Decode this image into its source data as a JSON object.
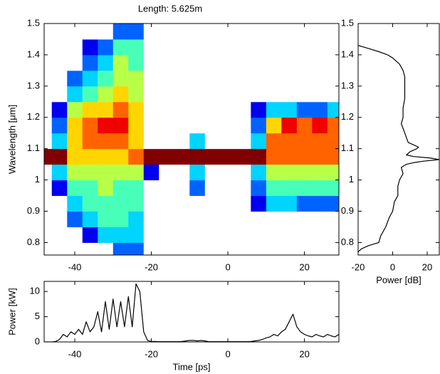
{
  "chart_data": [
    {
      "type": "heatmap",
      "title": "Length: 5.625m",
      "ylabel": "Wavelength [μm]",
      "xlim": [
        -48,
        29
      ],
      "xticks": [
        -40,
        -20,
        0,
        20
      ],
      "ylim": [
        0.76,
        1.5
      ],
      "yticks": [
        0.8,
        0.9,
        1,
        1.1,
        1.2,
        1.3,
        1.4,
        1.5
      ],
      "colormap": "jet",
      "x": [
        -48,
        -44,
        -40,
        -36,
        -32,
        -28,
        -24,
        -20,
        -16,
        -12,
        -8,
        -4,
        0,
        4,
        8,
        12,
        16,
        20,
        24,
        28
      ],
      "y": [
        0.775,
        0.825,
        0.875,
        0.925,
        0.975,
        1.025,
        1.075,
        1.125,
        1.175,
        1.225,
        1.275,
        1.325,
        1.375,
        1.425,
        1.475
      ],
      "z": [
        [
          0,
          0,
          0,
          0,
          0,
          2,
          2,
          0,
          0,
          0,
          0,
          0,
          0,
          0,
          0,
          0,
          0,
          0,
          0,
          0
        ],
        [
          0,
          0,
          0,
          1,
          3,
          3,
          3,
          0,
          0,
          0,
          0,
          0,
          0,
          0,
          0,
          0,
          0,
          0,
          0,
          0
        ],
        [
          0,
          0,
          2,
          3,
          4,
          4,
          3,
          0,
          0,
          0,
          0,
          0,
          0,
          0,
          0,
          0,
          0,
          0,
          0,
          0
        ],
        [
          0,
          0,
          3,
          4,
          4,
          4,
          4,
          0,
          0,
          0,
          0,
          0,
          0,
          0,
          1,
          3,
          3,
          2,
          2,
          2
        ],
        [
          0,
          1,
          4,
          4,
          5,
          4,
          4,
          0,
          0,
          0,
          2,
          0,
          0,
          0,
          2,
          4,
          4,
          4,
          4,
          4
        ],
        [
          0,
          3,
          5,
          5,
          5,
          5,
          5,
          1,
          0,
          0,
          3,
          0,
          0,
          0,
          3,
          5,
          5,
          5,
          5,
          5
        ],
        [
          9,
          9,
          6,
          6,
          6,
          6,
          7,
          9,
          9,
          9,
          9,
          9,
          9,
          9,
          9,
          7,
          7,
          7,
          7,
          7
        ],
        [
          0,
          3,
          6,
          7,
          7,
          7,
          6,
          0,
          0,
          0,
          3,
          0,
          0,
          0,
          3,
          7,
          7,
          7,
          7,
          7
        ],
        [
          0,
          2,
          6,
          7,
          8,
          8,
          6,
          0,
          0,
          0,
          0,
          0,
          0,
          0,
          2,
          6,
          8,
          7,
          8,
          7
        ],
        [
          0,
          1,
          5,
          6,
          6,
          7,
          6,
          0,
          0,
          0,
          0,
          0,
          0,
          0,
          1,
          3,
          3,
          2,
          2,
          3
        ],
        [
          0,
          0,
          3,
          4,
          5,
          6,
          5,
          0,
          0,
          0,
          0,
          0,
          0,
          0,
          0,
          0,
          0,
          0,
          0,
          0
        ],
        [
          0,
          0,
          2,
          3,
          4,
          5,
          5,
          0,
          0,
          0,
          0,
          0,
          0,
          0,
          0,
          0,
          0,
          0,
          0,
          0
        ],
        [
          0,
          0,
          0,
          2,
          3,
          5,
          4,
          0,
          0,
          0,
          0,
          0,
          0,
          0,
          0,
          0,
          0,
          0,
          0,
          0
        ],
        [
          0,
          0,
          0,
          1,
          2,
          4,
          4,
          0,
          0,
          0,
          0,
          0,
          0,
          0,
          0,
          0,
          0,
          0,
          0,
          0
        ],
        [
          0,
          0,
          0,
          0,
          0,
          2,
          2,
          0,
          0,
          0,
          0,
          0,
          0,
          0,
          0,
          0,
          0,
          0,
          0,
          0
        ]
      ]
    },
    {
      "type": "line",
      "xlabel": "Power [dB]",
      "color": "#000000",
      "xlim": [
        -20,
        27
      ],
      "xticks": [
        -20,
        0,
        20
      ],
      "ylim": [
        0.76,
        1.5
      ],
      "yticks": [
        0.8,
        0.9,
        1,
        1.1,
        1.2,
        1.3,
        1.4,
        1.5
      ],
      "y": [
        0.77,
        0.78,
        0.79,
        0.8,
        0.82,
        0.85,
        0.88,
        0.9,
        0.93,
        0.95,
        0.98,
        1.0,
        1.02,
        1.04,
        1.05,
        1.055,
        1.06,
        1.065,
        1.07,
        1.075,
        1.08,
        1.09,
        1.1,
        1.105,
        1.11,
        1.12,
        1.15,
        1.18,
        1.2,
        1.23,
        1.26,
        1.3,
        1.33,
        1.35,
        1.37,
        1.39,
        1.4,
        1.41,
        1.42,
        1.43
      ],
      "values": [
        -20,
        -18,
        -14,
        -8,
        -7,
        -4,
        -2,
        0,
        1,
        3,
        3,
        4,
        6,
        5,
        8,
        12,
        18,
        27,
        22,
        12,
        8,
        10,
        14,
        15,
        13,
        9,
        7,
        5,
        6,
        6,
        7,
        7,
        7,
        6,
        4,
        0,
        -3,
        -8,
        -14,
        -20
      ]
    },
    {
      "type": "line",
      "xlabel": "Time [ps]",
      "ylabel": "Power [kW]",
      "color": "#000000",
      "xlim": [
        -48,
        29
      ],
      "xticks": [
        -40,
        -20,
        0,
        20
      ],
      "ylim": [
        0,
        12
      ],
      "yticks": [
        0,
        5,
        10
      ],
      "x": [
        -50,
        -49,
        -48,
        -47,
        -46,
        -45,
        -44,
        -43,
        -42,
        -41,
        -40,
        -39,
        -38,
        -37,
        -36,
        -35,
        -34,
        -33,
        -32,
        -31,
        -30,
        -29,
        -28,
        -27,
        -26,
        -25,
        -24,
        -23,
        -22,
        -21,
        -20,
        -19,
        -18,
        -17,
        -16,
        -15,
        -14,
        -13,
        -12,
        -11,
        -10,
        -9,
        -8,
        -7,
        -6,
        -5,
        -4,
        -3,
        -2,
        -1,
        0,
        1,
        2,
        3,
        4,
        5,
        6,
        7,
        8,
        9,
        10,
        11,
        12,
        13,
        14,
        15,
        16,
        17,
        18,
        19,
        20,
        21,
        22,
        23,
        24,
        25,
        26,
        27,
        28,
        29,
        30
      ],
      "values": [
        0,
        0,
        0,
        0,
        0,
        0.1,
        0.5,
        1.5,
        1,
        2,
        1.5,
        2.5,
        1.5,
        4,
        2,
        3,
        6,
        2,
        8,
        2.5,
        8.5,
        3,
        8,
        3,
        9,
        3,
        11.5,
        10,
        2,
        0.3,
        0.1,
        0.1,
        0.05,
        0.05,
        0.05,
        0.05,
        0.05,
        0.05,
        0.1,
        0.2,
        0.3,
        0.3,
        0.2,
        0.3,
        0.2,
        0.05,
        0.05,
        0.05,
        0.05,
        0.05,
        0.05,
        0.05,
        0.05,
        0.05,
        0.05,
        0.05,
        0.1,
        0.2,
        0.3,
        0.5,
        0.8,
        1,
        1.5,
        1.2,
        2,
        2.5,
        4,
        5.5,
        3,
        2,
        1.5,
        1.2,
        1,
        1.5,
        1.2,
        1,
        1.5,
        1.2,
        1,
        1.5,
        1.2
      ]
    }
  ]
}
